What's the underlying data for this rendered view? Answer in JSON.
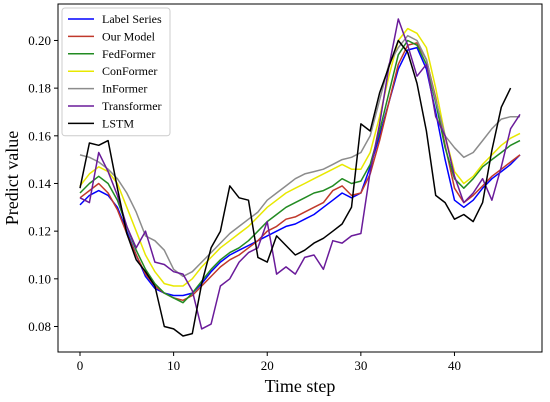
{
  "chart_data": {
    "type": "line",
    "xlabel": "Time step",
    "ylabel": "Predict value",
    "xlim": [
      -2.35,
      49.35
    ],
    "ylim": [
      0.0693,
      0.2153
    ],
    "xticks": [
      0,
      10,
      20,
      30,
      40
    ],
    "yticks": [
      0.08,
      0.1,
      0.12,
      0.14,
      0.16,
      0.18,
      0.2
    ],
    "ytick_labels": [
      "0.08",
      "0.10",
      "0.12",
      "0.14",
      "0.16",
      "0.18",
      "0.20"
    ],
    "grid": false,
    "legend_position": "top-left",
    "x": [
      0,
      1,
      2,
      3,
      4,
      5,
      6,
      7,
      8,
      9,
      10,
      11,
      12,
      13,
      14,
      15,
      16,
      17,
      18,
      19,
      20,
      21,
      22,
      23,
      24,
      25,
      26,
      27,
      28,
      29,
      30,
      31,
      32,
      33,
      34,
      35,
      36,
      37,
      38,
      39,
      40,
      41,
      42,
      43,
      44,
      45,
      46,
      47
    ],
    "series": [
      {
        "name": "Label Series",
        "color": "#0000ff",
        "values": [
          0.131,
          0.135,
          0.137,
          0.135,
          0.13,
          0.12,
          0.11,
          0.101,
          0.096,
          0.094,
          0.093,
          0.093,
          0.094,
          0.098,
          0.103,
          0.107,
          0.11,
          0.112,
          0.114,
          0.116,
          0.118,
          0.12,
          0.122,
          0.123,
          0.125,
          0.127,
          0.13,
          0.133,
          0.136,
          0.134,
          0.136,
          0.147,
          0.16,
          0.174,
          0.188,
          0.196,
          0.197,
          0.188,
          0.17,
          0.15,
          0.133,
          0.13,
          0.133,
          0.138,
          0.142,
          0.145,
          0.148,
          0.152
        ]
      },
      {
        "name": "Our Model",
        "color": "#c0392b",
        "values": [
          0.134,
          0.137,
          0.14,
          0.136,
          0.129,
          0.119,
          0.11,
          0.102,
          0.097,
          0.094,
          0.092,
          0.091,
          0.093,
          0.097,
          0.101,
          0.105,
          0.108,
          0.11,
          0.113,
          0.116,
          0.12,
          0.122,
          0.125,
          0.126,
          0.128,
          0.13,
          0.132,
          0.137,
          0.139,
          0.135,
          0.136,
          0.144,
          0.158,
          0.174,
          0.19,
          0.198,
          0.199,
          0.192,
          0.176,
          0.156,
          0.138,
          0.132,
          0.135,
          0.139,
          0.143,
          0.146,
          0.149,
          0.152
        ]
      },
      {
        "name": "FedFormer",
        "color": "#228b22",
        "values": [
          0.136,
          0.14,
          0.143,
          0.14,
          0.133,
          0.122,
          0.112,
          0.104,
          0.098,
          0.094,
          0.092,
          0.09,
          0.094,
          0.099,
          0.104,
          0.108,
          0.111,
          0.113,
          0.116,
          0.12,
          0.124,
          0.127,
          0.13,
          0.132,
          0.134,
          0.136,
          0.137,
          0.139,
          0.142,
          0.14,
          0.141,
          0.148,
          0.162,
          0.178,
          0.194,
          0.2,
          0.198,
          0.19,
          0.174,
          0.155,
          0.142,
          0.138,
          0.142,
          0.147,
          0.15,
          0.153,
          0.156,
          0.158
        ]
      },
      {
        "name": "ConFormer",
        "color": "#e8e800",
        "values": [
          0.139,
          0.144,
          0.147,
          0.145,
          0.14,
          0.13,
          0.12,
          0.11,
          0.103,
          0.098,
          0.097,
          0.097,
          0.1,
          0.105,
          0.109,
          0.113,
          0.116,
          0.119,
          0.122,
          0.126,
          0.13,
          0.133,
          0.136,
          0.138,
          0.14,
          0.142,
          0.144,
          0.146,
          0.148,
          0.146,
          0.146,
          0.153,
          0.168,
          0.185,
          0.2,
          0.205,
          0.203,
          0.197,
          0.18,
          0.16,
          0.145,
          0.14,
          0.143,
          0.148,
          0.152,
          0.156,
          0.159,
          0.161
        ]
      },
      {
        "name": "InFormer",
        "color": "#8c8c8c",
        "values": [
          0.152,
          0.151,
          0.149,
          0.146,
          0.142,
          0.136,
          0.128,
          0.118,
          0.116,
          0.112,
          0.104,
          0.101,
          0.103,
          0.107,
          0.111,
          0.115,
          0.119,
          0.122,
          0.125,
          0.128,
          0.133,
          0.136,
          0.139,
          0.142,
          0.144,
          0.145,
          0.146,
          0.148,
          0.15,
          0.151,
          0.153,
          0.16,
          0.175,
          0.19,
          0.197,
          0.202,
          0.2,
          0.192,
          0.175,
          0.16,
          0.155,
          0.151,
          0.153,
          0.158,
          0.163,
          0.167,
          0.168,
          0.168
        ]
      },
      {
        "name": "Transformer",
        "color": "#6a1b9a",
        "values": [
          0.134,
          0.132,
          0.153,
          0.145,
          0.135,
          0.122,
          0.113,
          0.12,
          0.107,
          0.106,
          0.103,
          0.102,
          0.095,
          0.079,
          0.081,
          0.097,
          0.1,
          0.107,
          0.111,
          0.113,
          0.124,
          0.102,
          0.105,
          0.102,
          0.109,
          0.11,
          0.104,
          0.116,
          0.115,
          0.118,
          0.119,
          0.145,
          0.165,
          0.189,
          0.209,
          0.198,
          0.185,
          0.19,
          0.168,
          0.16,
          0.143,
          0.132,
          0.136,
          0.142,
          0.133,
          0.147,
          0.163,
          0.169
        ]
      },
      {
        "name": "LSTM",
        "color": "#000000",
        "values": [
          0.138,
          0.157,
          0.156,
          0.158,
          0.138,
          0.119,
          0.108,
          0.103,
          0.097,
          0.08,
          0.079,
          0.076,
          0.077,
          0.098,
          0.113,
          0.12,
          0.139,
          0.134,
          0.133,
          0.109,
          0.107,
          0.118,
          0.114,
          0.11,
          0.112,
          0.115,
          0.117,
          0.12,
          0.123,
          0.13,
          0.165,
          0.162,
          0.178,
          0.189,
          0.2,
          0.195,
          0.182,
          0.162,
          0.135,
          0.132,
          0.125,
          0.127,
          0.124,
          0.132,
          0.154,
          0.172,
          0.18,
          null
        ]
      }
    ]
  }
}
